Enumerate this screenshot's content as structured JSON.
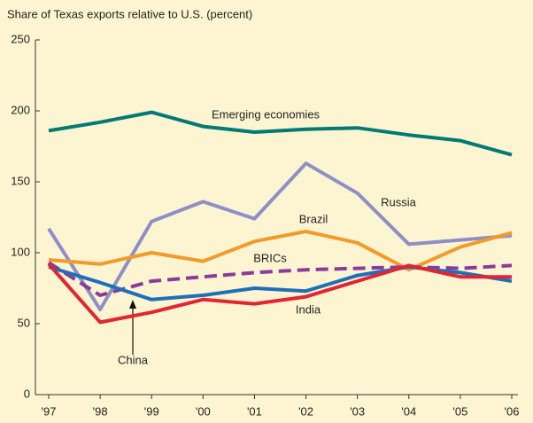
{
  "chart_data": {
    "type": "line",
    "y_axis_label": "Share of Texas exports relative to U.S. (percent)",
    "categories": [
      "'97",
      "'98",
      "'99",
      "'00",
      "'01",
      "'02",
      "'03",
      "'04",
      "'05",
      "'06"
    ],
    "series": [
      {
        "name": "Emerging economies",
        "color": "#007a73",
        "dashed": false,
        "values": [
          186,
          192,
          199,
          189,
          185,
          187,
          188,
          183,
          179,
          169
        ]
      },
      {
        "name": "Russia",
        "color": "#8f8fc8",
        "dashed": false,
        "values": [
          117,
          60,
          122,
          136,
          124,
          163,
          142,
          106,
          109,
          112
        ]
      },
      {
        "name": "Brazil",
        "color": "#f29b2a",
        "dashed": false,
        "values": [
          95,
          92,
          100,
          94,
          108,
          115,
          107,
          88,
          104,
          114
        ]
      },
      {
        "name": "BRICs",
        "color": "#8b3a9b",
        "dashed": true,
        "values": [
          93,
          70,
          80,
          83,
          86,
          88,
          89,
          90,
          89,
          91
        ]
      },
      {
        "name": "India",
        "color": "#1e6fba",
        "dashed": false,
        "values": [
          90,
          79,
          67,
          70,
          75,
          73,
          84,
          90,
          86,
          80
        ]
      },
      {
        "name": "China",
        "color": "#e32431",
        "dashed": false,
        "values": [
          92,
          51,
          58,
          67,
          64,
          69,
          80,
          91,
          83,
          83
        ]
      }
    ],
    "ylim": [
      0,
      250
    ],
    "yticks": [
      0,
      50,
      100,
      150,
      200,
      250
    ],
    "grid": false
  }
}
